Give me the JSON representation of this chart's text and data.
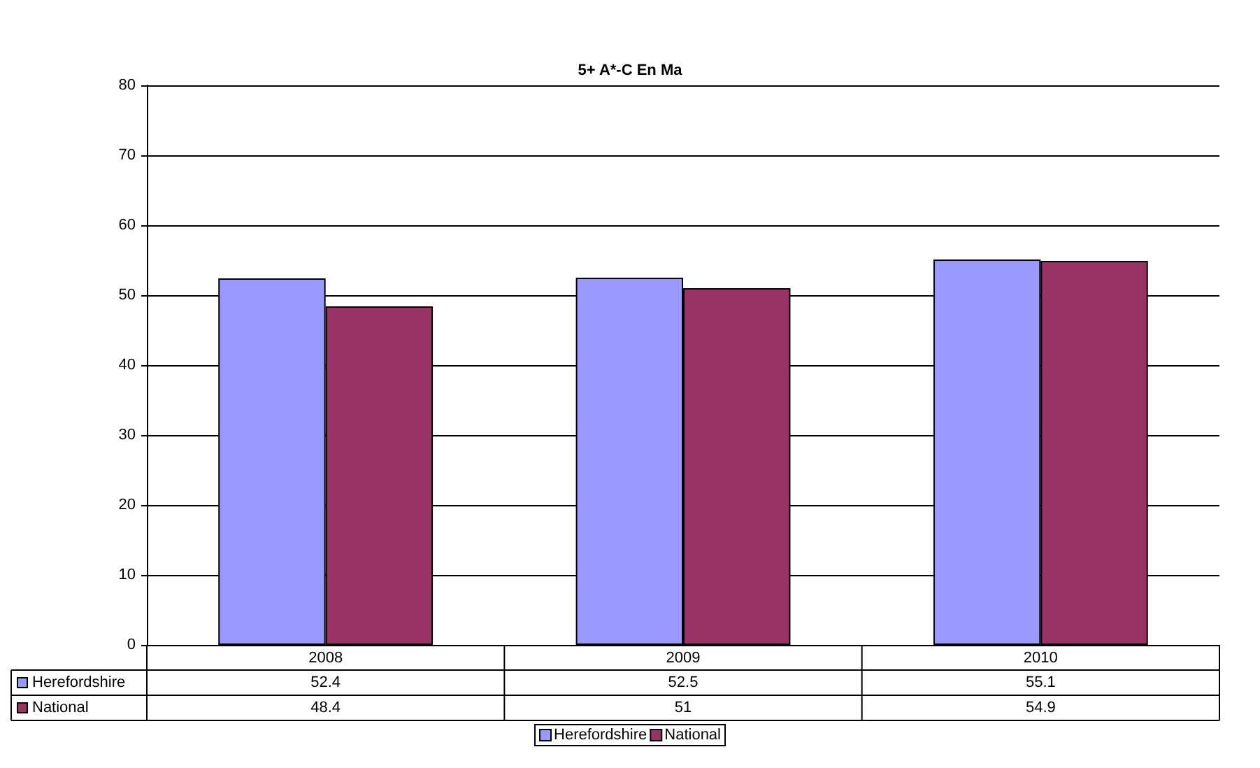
{
  "chart_data": {
    "type": "bar",
    "title": "5+ A*-C En Ma",
    "categories": [
      "2008",
      "2009",
      "2010"
    ],
    "series": [
      {
        "name": "Herefordshire",
        "color": "#9999ff",
        "values": [
          52.4,
          52.5,
          55.1
        ]
      },
      {
        "name": "National",
        "color": "#993366",
        "values": [
          48.4,
          51,
          54.9
        ]
      }
    ],
    "ylim": [
      0,
      80
    ],
    "yticks": [
      0,
      10,
      20,
      30,
      40,
      50,
      60,
      70,
      80
    ],
    "grid": "y",
    "legend": "bottom",
    "data_labels": true
  }
}
